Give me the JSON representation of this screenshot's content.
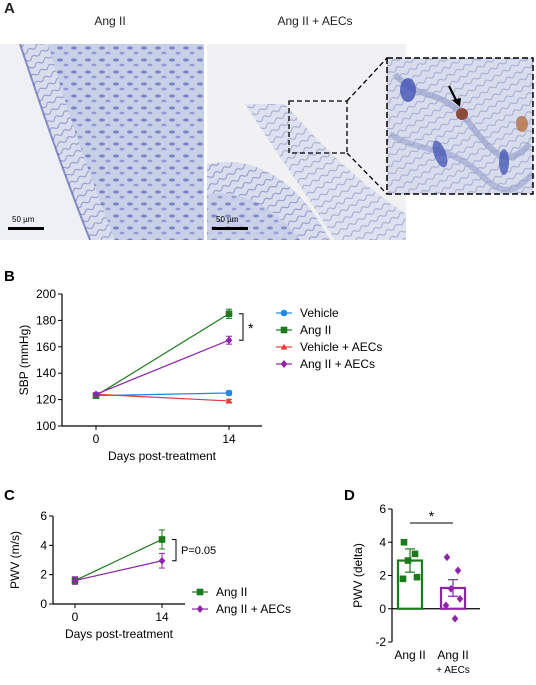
{
  "panels": {
    "a": {
      "label": "A",
      "left_title": "Ang II",
      "right_title": "Ang II + AECs",
      "scalebar_left": "50 µm",
      "scalebar_right": "50 µm"
    },
    "b": {
      "label": "B"
    },
    "c": {
      "label": "C"
    },
    "d": {
      "label": "D"
    }
  },
  "colors": {
    "vehicle": "#1e88e5",
    "ang2": "#1b7a1b",
    "vehicle_aecs": "#e53935",
    "ang2_aecs": "#8e24aa"
  },
  "chart_data": [
    {
      "id": "B",
      "type": "line",
      "xlabel": "Days post-treatment",
      "ylabel": "SBP (mmHg)",
      "x": [
        0,
        14
      ],
      "xticks": [
        "0",
        "14"
      ],
      "yticks": [
        100,
        120,
        140,
        160,
        180,
        200
      ],
      "ylim": [
        100,
        200
      ],
      "series": [
        {
          "name": "Vehicle",
          "values": [
            123,
            125
          ],
          "err": [
            1.2,
            1.5
          ],
          "marker": "circle",
          "color": "#1e88e5"
        },
        {
          "name": "Ang II",
          "values": [
            123,
            185
          ],
          "err": [
            1.5,
            3.5
          ],
          "marker": "square",
          "color": "#1b7a1b"
        },
        {
          "name": "Vehicle + AECs",
          "values": [
            124,
            119
          ],
          "err": [
            1.0,
            1.2
          ],
          "marker": "triangle",
          "color": "#e53935"
        },
        {
          "name": "Ang II + AECs",
          "values": [
            124,
            165
          ],
          "err": [
            1.2,
            3.0
          ],
          "marker": "diamond",
          "color": "#8e24aa"
        }
      ],
      "annotation": "*",
      "legend": "right"
    },
    {
      "id": "C",
      "type": "line",
      "xlabel": "Days post-treatment",
      "ylabel": "PWV (m/s)",
      "x": [
        0,
        14
      ],
      "xticks": [
        "0",
        "14"
      ],
      "yticks": [
        0,
        2,
        4,
        6
      ],
      "ylim": [
        0,
        6
      ],
      "series": [
        {
          "name": "Ang II",
          "values": [
            1.6,
            4.4
          ],
          "err": [
            0.25,
            0.65
          ],
          "marker": "square",
          "color": "#1b7a1b"
        },
        {
          "name": "Ang II + AECs",
          "values": [
            1.6,
            2.95
          ],
          "err": [
            0.25,
            0.5
          ],
          "marker": "diamond",
          "color": "#8e24aa"
        }
      ],
      "annotation": "P=0.05",
      "legend": "right"
    },
    {
      "id": "D",
      "type": "bar",
      "xlabel": "",
      "ylabel": "PWV (delta)",
      "categories": [
        "Ang II",
        "Ang II + AECs"
      ],
      "category_lines": [
        [
          "Ang II"
        ],
        [
          "Ang II",
          "+ AECs"
        ]
      ],
      "yticks": [
        -2,
        0,
        2,
        4,
        6
      ],
      "ylim": [
        -2,
        6
      ],
      "values": [
        2.9,
        1.25
      ],
      "err": [
        0.7,
        0.5
      ],
      "points": [
        [
          4.0,
          3.3,
          2.9,
          1.9,
          1.8
        ],
        [
          3.1,
          2.3,
          1.2,
          0.6,
          0.2,
          -0.6
        ]
      ],
      "colors": [
        "#1b7a1b",
        "#8e24aa"
      ],
      "annotation": "*"
    }
  ]
}
